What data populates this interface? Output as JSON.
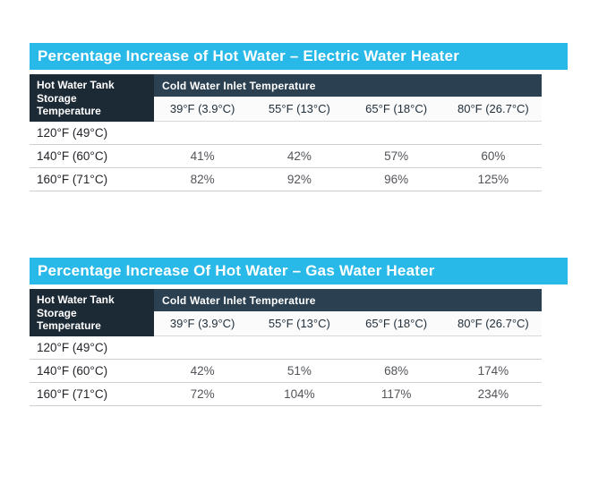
{
  "page": {
    "background": "#ffffff"
  },
  "colors": {
    "title_bar_bg": "#29b9e8",
    "title_text": "#ffffff",
    "row_header_bg": "#1c2a36",
    "col_group_bg": "#2b4050",
    "subheader_bg": "#fbfbfb",
    "divider": "#cfcfcf",
    "label_text": "#23252a",
    "value_text": "#515459"
  },
  "chart_data": [
    {
      "type": "table",
      "title": "Percentage Increase of Hot Water – Electric Water Heater",
      "row_header": "Hot Water Tank Storage Temperature",
      "col_group_header": "Cold Water Inlet Temperature",
      "columns": [
        "39°F (3.9°C)",
        "55°F (13°C)",
        "65°F (18°C)",
        "80°F (26.7°C)"
      ],
      "rows": [
        {
          "label": "120°F (49°C)",
          "values": [
            "",
            "",
            "",
            ""
          ]
        },
        {
          "label": "140°F (60°C)",
          "values": [
            "41%",
            "42%",
            "57%",
            "60%"
          ]
        },
        {
          "label": "160°F (71°C)",
          "values": [
            "82%",
            "92%",
            "96%",
            "125%"
          ]
        }
      ]
    },
    {
      "type": "table",
      "title": "Percentage Increase Of Hot Water – Gas Water Heater",
      "row_header": "Hot Water Tank Storage Temperature",
      "col_group_header": "Cold Water Inlet Temperature",
      "columns": [
        "39°F (3.9°C)",
        "55°F (13°C)",
        "65°F (18°C)",
        "80°F (26.7°C)"
      ],
      "rows": [
        {
          "label": "120°F (49°C)",
          "values": [
            "",
            "",
            "",
            ""
          ]
        },
        {
          "label": "140°F (60°C)",
          "values": [
            "42%",
            "51%",
            "68%",
            "174%"
          ]
        },
        {
          "label": "160°F (71°C)",
          "values": [
            "72%",
            "104%",
            "117%",
            "234%"
          ]
        }
      ]
    }
  ]
}
